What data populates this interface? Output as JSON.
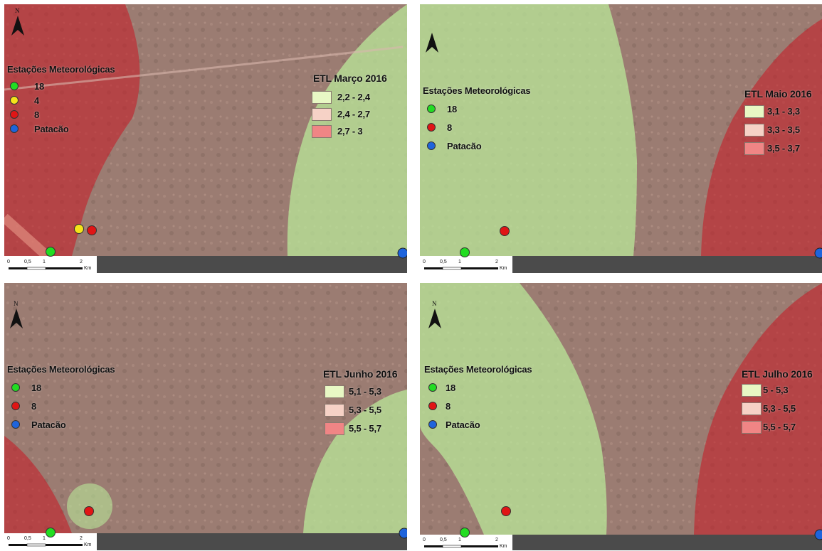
{
  "colors": {
    "green_zone": "#b9e89a",
    "pink_zone": "#c49a8f",
    "red_zone": "#c4202a",
    "swatch_green": "#e8f8c4",
    "swatch_pink": "#f6d2c6",
    "swatch_red": "#f08585",
    "station_green": "#22dd22",
    "station_yellow": "#f5e31a",
    "station_red": "#e01515",
    "station_blue": "#1e64dc"
  },
  "icons": {
    "north_arrow": "north-arrow-icon",
    "station_marker": "circle-marker-icon"
  },
  "maps": [
    {
      "id": "marco",
      "legend_title": "ETL Março 2016",
      "legend_classes": [
        {
          "label": "2,2 - 2,4",
          "swatch": "swatch_green"
        },
        {
          "label": "2,4 - 2,7",
          "swatch": "swatch_pink"
        },
        {
          "label": "2,7 - 3",
          "swatch": "swatch_red"
        }
      ],
      "stations_title": "Estações Meteorológicas",
      "stations": [
        {
          "label": "18",
          "color": "station_green"
        },
        {
          "label": "4",
          "color": "station_yellow"
        },
        {
          "label": "8",
          "color": "station_red"
        },
        {
          "label": "Patacão",
          "color": "station_blue"
        }
      ],
      "north_label": "N",
      "scale_ticks": [
        "0",
        "0,5",
        "1",
        "2"
      ],
      "scale_unit": "Km"
    },
    {
      "id": "maio",
      "legend_title": "ETL Maio 2016",
      "legend_classes": [
        {
          "label": "3,1 - 3,3",
          "swatch": "swatch_green"
        },
        {
          "label": "3,3 - 3,5",
          "swatch": "swatch_pink"
        },
        {
          "label": "3,5 - 3,7",
          "swatch": "swatch_red"
        }
      ],
      "stations_title": "Estações Meteorológicas",
      "stations": [
        {
          "label": "18",
          "color": "station_green"
        },
        {
          "label": "8",
          "color": "station_red"
        },
        {
          "label": "Patacão",
          "color": "station_blue"
        }
      ],
      "north_label": "",
      "scale_ticks": [
        "0",
        "0,5",
        "1",
        "2"
      ],
      "scale_unit": "Km"
    },
    {
      "id": "junho",
      "legend_title": "ETL Junho 2016",
      "legend_classes": [
        {
          "label": "5,1 - 5,3",
          "swatch": "swatch_green"
        },
        {
          "label": "5,3 - 5,5",
          "swatch": "swatch_pink"
        },
        {
          "label": "5,5 - 5,7",
          "swatch": "swatch_red"
        }
      ],
      "stations_title": "Estações Meteorológicas",
      "stations": [
        {
          "label": "18",
          "color": "station_green"
        },
        {
          "label": "8",
          "color": "station_red"
        },
        {
          "label": "Patacão",
          "color": "station_blue"
        }
      ],
      "north_label": "N",
      "scale_ticks": [
        "0",
        "0,5",
        "1",
        "2"
      ],
      "scale_unit": "Km"
    },
    {
      "id": "julho",
      "legend_title": "ETL Julho 2016",
      "legend_classes": [
        {
          "label": "5 - 5,3",
          "swatch": "swatch_green"
        },
        {
          "label": "5,3 - 5,5",
          "swatch": "swatch_pink"
        },
        {
          "label": "5,5 - 5,7",
          "swatch": "swatch_red"
        }
      ],
      "stations_title": "Estações Meteorológicas",
      "stations": [
        {
          "label": "18",
          "color": "station_green"
        },
        {
          "label": "8",
          "color": "station_red"
        },
        {
          "label": "Patacão",
          "color": "station_blue"
        }
      ],
      "north_label": "N",
      "scale_ticks": [
        "0",
        "0,5",
        "1",
        "2"
      ],
      "scale_unit": "Km"
    }
  ]
}
